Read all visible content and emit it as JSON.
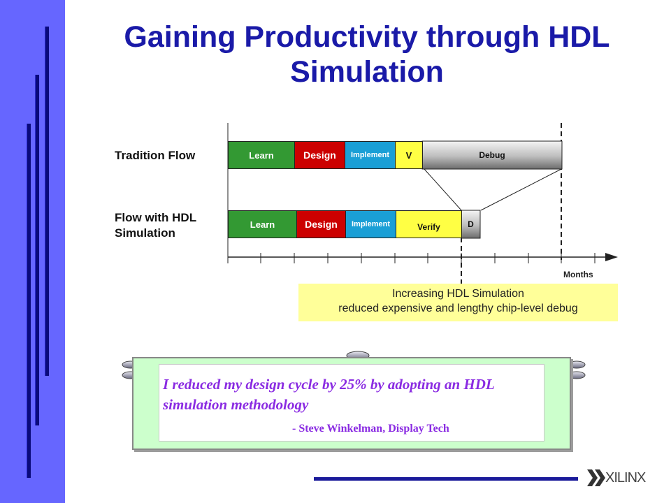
{
  "title": "Gaining Productivity through HDL Simulation",
  "flows": {
    "traditional": {
      "label": "Tradition Flow",
      "segments": [
        {
          "label": "Learn",
          "color": "#339933"
        },
        {
          "label": "Design",
          "color": "#cc0000"
        },
        {
          "label": "Implement",
          "color": "#1a9fd6"
        },
        {
          "label": "V",
          "color": "#ffff44"
        },
        {
          "label": "Debug",
          "color": "#bbbbbb"
        }
      ]
    },
    "hdl": {
      "label_line1": "Flow with HDL",
      "label_line2": "Simulation",
      "segments": [
        {
          "label": "Learn",
          "color": "#339933"
        },
        {
          "label": "Design",
          "color": "#cc0000"
        },
        {
          "label": "Implement",
          "color": "#1a9fd6"
        },
        {
          "label": "Verify",
          "color": "#ffff44"
        },
        {
          "label": "D",
          "color": "#bbbbbb"
        }
      ]
    }
  },
  "axis_label": "Months",
  "callout": {
    "line1": "Increasing HDL Simulation",
    "line2": "reduced expensive and lengthy chip-level debug"
  },
  "quote": {
    "text": "I reduced my design cycle by 25% by adopting an HDL simulation methodology",
    "attribution": "- Steve Winkelman, Display Tech"
  },
  "logo": {
    "text": "XILINX",
    "icon": "xilinx-logo-icon"
  }
}
